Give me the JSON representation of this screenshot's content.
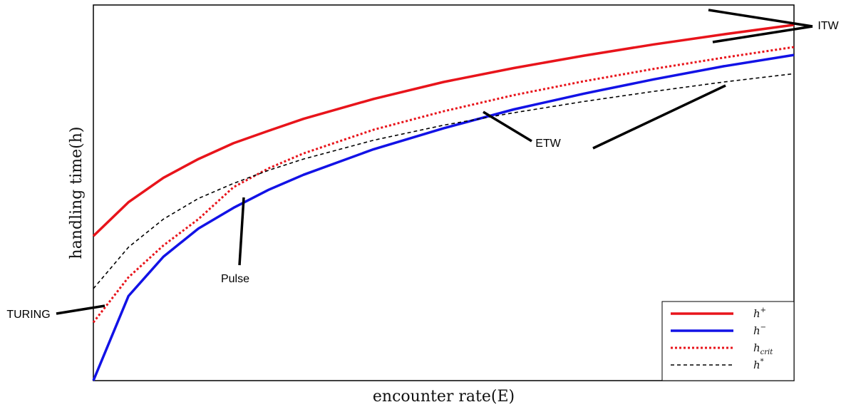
{
  "chart_data": {
    "type": "line",
    "title": "",
    "xlabel": "encounter rate(E)",
    "ylabel": "handling time(h)",
    "xlim": [
      0,
      1
    ],
    "ylim": [
      0,
      1
    ],
    "x": [
      0,
      0.05,
      0.1,
      0.15,
      0.2,
      0.25,
      0.3,
      0.4,
      0.5,
      0.6,
      0.7,
      0.8,
      0.9,
      1.0
    ],
    "grid": false,
    "legend_position": "bottom-right",
    "series": [
      {
        "name": "h+",
        "legend_base": "h",
        "legend_suffix": "+",
        "color": "#e8141b",
        "style": "solid",
        "values": [
          0.385,
          0.475,
          0.54,
          0.59,
          0.632,
          0.665,
          0.697,
          0.75,
          0.795,
          0.832,
          0.865,
          0.895,
          0.922,
          0.947
        ]
      },
      {
        "name": "h−",
        "legend_base": "h",
        "legend_suffix": "−",
        "color": "#1212e6",
        "style": "solid",
        "values": [
          0.0,
          0.225,
          0.33,
          0.405,
          0.46,
          0.508,
          0.548,
          0.616,
          0.672,
          0.722,
          0.764,
          0.802,
          0.837,
          0.867
        ]
      },
      {
        "name": "h_crit",
        "legend_base": "h",
        "legend_suffix": "crit",
        "color": "#e8141b",
        "style": "dotted",
        "values": [
          0.155,
          0.275,
          0.36,
          0.43,
          0.515,
          0.565,
          0.605,
          0.668,
          0.717,
          0.76,
          0.797,
          0.83,
          0.86,
          0.888
        ]
      },
      {
        "name": "h*",
        "legend_base": "h",
        "legend_suffix": "*",
        "color": "#000000",
        "style": "dashed",
        "values": [
          0.245,
          0.355,
          0.43,
          0.485,
          0.525,
          0.56,
          0.59,
          0.64,
          0.68,
          0.713,
          0.743,
          0.77,
          0.795,
          0.817
        ]
      }
    ],
    "annotations": [
      {
        "label": "ITW"
      },
      {
        "label": "ETW"
      },
      {
        "label": "Pulse"
      },
      {
        "label": "TURING"
      }
    ]
  }
}
